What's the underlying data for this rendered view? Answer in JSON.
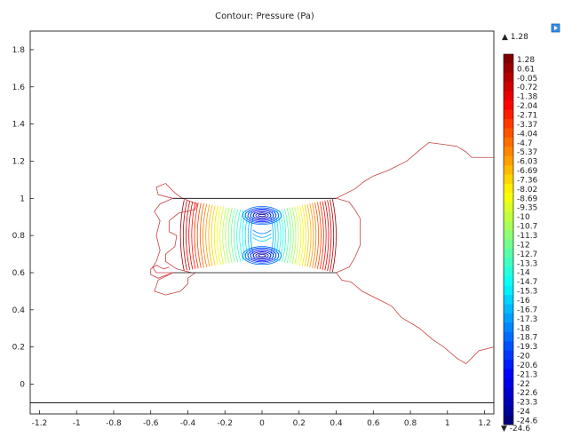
{
  "chart_data": {
    "type": "contour",
    "title": "Contour: Pressure (Pa)",
    "xlabel": "",
    "ylabel": "",
    "xlim": [
      -1.25,
      1.25
    ],
    "ylim": [
      -0.16,
      1.9
    ],
    "x_ticks": [
      "-1.2",
      "-1",
      "-0.8",
      "-0.6",
      "-0.4",
      "-0.2",
      "0",
      "0.2",
      "0.4",
      "0.6",
      "0.8",
      "1",
      "1.2"
    ],
    "y_ticks": [
      "0",
      "0.2",
      "0.4",
      "0.6",
      "0.8",
      "1",
      "1.2",
      "1.4",
      "1.6",
      "1.8"
    ],
    "grid": false,
    "colorbar": {
      "max_label": "▲ 1.28",
      "min_label": "▼ -24.6",
      "levels": [
        "1.28",
        "0.61",
        "-0.05",
        "-0.72",
        "-1.38",
        "-2.04",
        "-2.71",
        "-3.37",
        "-4.04",
        "-4.7",
        "-5.37",
        "-6.03",
        "-6.69",
        "-7.36",
        "-8.02",
        "-8.69",
        "-9.35",
        "-10",
        "-10.7",
        "-11.3",
        "-12",
        "-12.7",
        "-13.3",
        "-14",
        "-14.7",
        "-15.3",
        "-16",
        "-16.7",
        "-17.3",
        "-18",
        "-18.7",
        "-19.3",
        "-20",
        "-20.6",
        "-21.3",
        "-22",
        "-22.6",
        "-23.3",
        "-24",
        "-24.6"
      ]
    },
    "geometry": {
      "channel_top": [
        [
          -0.48,
          1.0
        ],
        [
          0.4,
          1.0
        ]
      ],
      "channel_bottom": [
        [
          -0.48,
          0.6
        ],
        [
          0.4,
          0.6
        ]
      ],
      "throat_x": 0.0,
      "throat_top": 0.92,
      "throat_bottom": 0.68,
      "ground_y": -0.1
    }
  }
}
